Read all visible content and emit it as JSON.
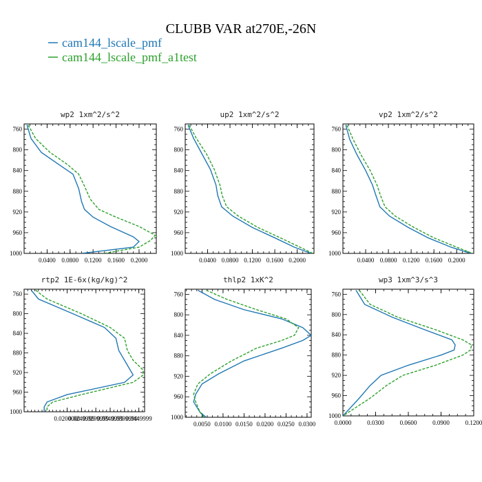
{
  "page": {
    "title": "CLUBB VAR at270E,-26N"
  },
  "legend": [
    {
      "name": "cam144_lscale_pmf",
      "color": "#1f77b4",
      "dash": "solid"
    },
    {
      "name": "cam144_lscale_pmf_a1test",
      "color": "#2ca02c",
      "dash": "dashed"
    }
  ],
  "chart_data": [
    {
      "type": "line",
      "title": "wp2   1xm^2/s^2",
      "xlim": [
        0.0,
        0.23
      ],
      "ylim": [
        1000,
        750
      ],
      "xticks": [
        0.04,
        0.08,
        0.12,
        0.16,
        0.2
      ],
      "xtick_labels": [
        "0.0400",
        "0.0800",
        "0.1200",
        "0.1600",
        "0.2000"
      ],
      "yticks": [
        760,
        800,
        840,
        880,
        920,
        960,
        1000
      ],
      "ytick_labels": [
        "760",
        "800",
        "840",
        "880",
        "920",
        "960",
        "1000"
      ],
      "series": [
        {
          "name": "cam144_lscale_pmf",
          "x": [
            0.005,
            0.012,
            0.03,
            0.06,
            0.085,
            0.095,
            0.1,
            0.105,
            0.12,
            0.15,
            0.19,
            0.2,
            0.19,
            0.1
          ],
          "y": [
            752,
            778,
            805,
            828,
            847,
            875,
            900,
            915,
            930,
            948,
            968,
            977,
            988,
            1000
          ]
        },
        {
          "name": "cam144_lscale_pmf_a1test",
          "x": [
            0.007,
            0.02,
            0.045,
            0.075,
            0.095,
            0.105,
            0.115,
            0.13,
            0.16,
            0.2,
            0.228,
            0.22,
            0.2,
            0.14
          ],
          "y": [
            752,
            778,
            805,
            828,
            847,
            870,
            895,
            915,
            930,
            948,
            965,
            975,
            988,
            1000
          ]
        }
      ]
    },
    {
      "type": "line",
      "title": "up2   1xm^2/s^2",
      "xlim": [
        0.0,
        0.23
      ],
      "ylim": [
        1000,
        750
      ],
      "xticks": [
        0.04,
        0.08,
        0.12,
        0.16,
        0.2
      ],
      "xtick_labels": [
        "0.0400",
        "0.0800",
        "0.1200",
        "0.1600",
        "0.2000"
      ],
      "yticks": [
        760,
        800,
        840,
        880,
        920,
        960,
        1000
      ],
      "ytick_labels": [
        "760",
        "800",
        "840",
        "880",
        "920",
        "960",
        "1000"
      ],
      "series": [
        {
          "name": "cam144_lscale_pmf",
          "x": [
            0.005,
            0.015,
            0.03,
            0.045,
            0.055,
            0.058,
            0.065,
            0.085,
            0.12,
            0.16,
            0.195,
            0.225
          ],
          "y": [
            752,
            778,
            808,
            838,
            868,
            888,
            910,
            928,
            950,
            970,
            988,
            1000
          ]
        },
        {
          "name": "cam144_lscale_pmf_a1test",
          "x": [
            0.007,
            0.02,
            0.038,
            0.052,
            0.062,
            0.066,
            0.074,
            0.095,
            0.13,
            0.17,
            0.205,
            0.228
          ],
          "y": [
            752,
            778,
            808,
            838,
            868,
            888,
            910,
            928,
            950,
            970,
            988,
            1000
          ]
        }
      ]
    },
    {
      "type": "line",
      "title": "vp2   1xm^2/s^2",
      "xlim": [
        0.0,
        0.23
      ],
      "ylim": [
        1000,
        750
      ],
      "xticks": [
        0.04,
        0.08,
        0.12,
        0.16,
        0.2
      ],
      "xtick_labels": [
        "0.0400",
        "0.0800",
        "0.1200",
        "0.1600",
        "0.2000"
      ],
      "yticks": [
        760,
        800,
        840,
        880,
        920,
        960,
        1000
      ],
      "ytick_labels": [
        "760",
        "800",
        "840",
        "880",
        "920",
        "960",
        "1000"
      ],
      "series": [
        {
          "name": "cam144_lscale_pmf",
          "x": [
            0.005,
            0.012,
            0.025,
            0.04,
            0.052,
            0.058,
            0.065,
            0.082,
            0.115,
            0.15,
            0.19,
            0.225
          ],
          "y": [
            752,
            780,
            810,
            840,
            868,
            888,
            910,
            928,
            950,
            970,
            988,
            1000
          ]
        },
        {
          "name": "cam144_lscale_pmf_a1test",
          "x": [
            0.007,
            0.018,
            0.032,
            0.048,
            0.06,
            0.066,
            0.074,
            0.092,
            0.125,
            0.16,
            0.2,
            0.228
          ],
          "y": [
            752,
            780,
            810,
            840,
            868,
            888,
            910,
            928,
            950,
            970,
            988,
            1000
          ]
        }
      ]
    },
    {
      "type": "line",
      "title": "rtp2   1E-6x(kg/kg)^2",
      "xlim": [
        0.005,
        0.047
      ],
      "ylim": [
        1000,
        750
      ],
      "xticks": [
        0.02,
        0.025,
        0.03,
        0.035,
        0.04,
        0.045
      ],
      "xtick_labels": [
        "0.0200000",
        "0.0249999",
        "0.0299999",
        "0.0349999",
        "0.0399999",
        "0.0449999"
      ],
      "yticks": [
        760,
        800,
        840,
        880,
        920,
        960,
        1000
      ],
      "ytick_labels": [
        "760",
        "800",
        "840",
        "880",
        "920",
        "960",
        "1000"
      ],
      "series": [
        {
          "name": "cam144_lscale_pmf",
          "x": [
            0.0075,
            0.01,
            0.022,
            0.033,
            0.037,
            0.038,
            0.04,
            0.042,
            0.043,
            0.04,
            0.02,
            0.013,
            0.012,
            0.012
          ],
          "y": [
            752,
            770,
            800,
            828,
            850,
            875,
            895,
            915,
            925,
            940,
            965,
            980,
            990,
            1000
          ]
        },
        {
          "name": "cam144_lscale_pmf_a1test",
          "x": [
            0.009,
            0.013,
            0.025,
            0.035,
            0.04,
            0.041,
            0.043,
            0.0465,
            0.0465,
            0.043,
            0.025,
            0.015,
            0.013,
            0.013
          ],
          "y": [
            752,
            770,
            800,
            828,
            850,
            875,
            895,
            915,
            925,
            940,
            965,
            980,
            990,
            1000
          ]
        }
      ]
    },
    {
      "type": "line",
      "title": "thlp2   1xK^2",
      "xlim": [
        0.001,
        0.031
      ],
      "ylim": [
        1000,
        750
      ],
      "xticks": [
        0.005,
        0.01,
        0.015,
        0.02,
        0.025,
        0.03
      ],
      "xtick_labels": [
        "0.0050",
        "0.0100",
        "0.0150",
        "0.0200",
        "0.0250",
        "0.0300"
      ],
      "yticks": [
        760,
        800,
        840,
        880,
        920,
        960,
        1000
      ],
      "ytick_labels": [
        "760",
        "800",
        "840",
        "880",
        "920",
        "960",
        "1000"
      ],
      "series": [
        {
          "name": "cam144_lscale_pmf",
          "x": [
            0.004,
            0.008,
            0.015,
            0.024,
            0.029,
            0.031,
            0.029,
            0.024,
            0.015,
            0.009,
            0.005,
            0.0035,
            0.003,
            0.0045,
            0.006
          ],
          "y": [
            752,
            770,
            790,
            808,
            825,
            840,
            850,
            865,
            890,
            915,
            935,
            955,
            970,
            990,
            1000
          ]
        },
        {
          "name": "cam144_lscale_pmf_a1test",
          "x": [
            0.006,
            0.011,
            0.018,
            0.025,
            0.028,
            0.027,
            0.024,
            0.018,
            0.012,
            0.007,
            0.004,
            0.003,
            0.0035,
            0.0045,
            0.0055
          ],
          "y": [
            752,
            770,
            790,
            808,
            825,
            840,
            850,
            865,
            890,
            915,
            935,
            955,
            970,
            990,
            1000
          ]
        }
      ]
    },
    {
      "type": "line",
      "title": "wp3   1xm^3/s^3",
      "xlim": [
        0.0,
        0.12
      ],
      "ylim": [
        1000,
        750
      ],
      "xticks": [
        0.0,
        0.03,
        0.06,
        0.09,
        0.12
      ],
      "xtick_labels": [
        "0.0000",
        "0.0300",
        "0.0600",
        "0.0900",
        "0.1200"
      ],
      "yticks": [
        760,
        800,
        840,
        880,
        920,
        960,
        1000
      ],
      "ytick_labels": [
        "760",
        "800",
        "840",
        "880",
        "920",
        "960",
        "1000"
      ],
      "series": [
        {
          "name": "cam144_lscale_pmf",
          "x": [
            0.012,
            0.02,
            0.045,
            0.075,
            0.1,
            0.103,
            0.102,
            0.09,
            0.06,
            0.035,
            0.025,
            0.015,
            0.0
          ],
          "y": [
            752,
            780,
            805,
            830,
            850,
            860,
            870,
            880,
            900,
            920,
            940,
            965,
            1000
          ]
        },
        {
          "name": "cam144_lscale_pmf_a1test",
          "x": [
            0.015,
            0.025,
            0.05,
            0.085,
            0.11,
            0.118,
            0.117,
            0.11,
            0.085,
            0.055,
            0.04,
            0.025,
            0.0
          ],
          "y": [
            752,
            780,
            805,
            830,
            850,
            860,
            870,
            880,
            900,
            920,
            940,
            965,
            1000
          ]
        }
      ]
    }
  ]
}
